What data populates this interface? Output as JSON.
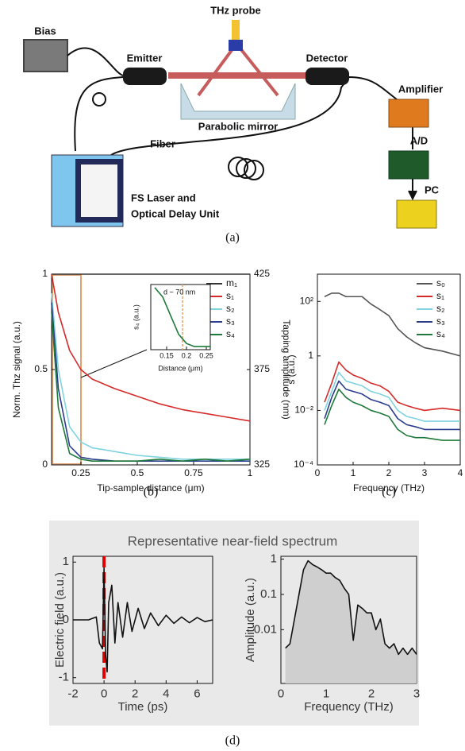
{
  "panel_a": {
    "bias": "Bias",
    "emitter": "Emitter",
    "thz_probe": "THz probe",
    "parabolic_mirror": "Parabolic mirror",
    "detector": "Detector",
    "amplifier": "Amplifier",
    "ad": "A/D",
    "pc": "PC",
    "fiber": "Fiber",
    "laser_line1": "FS Laser and",
    "laser_line2": "Optical Delay Unit",
    "caption": "(a)"
  },
  "panel_d": {
    "title": "Representative near-field spectrum",
    "caption": "(d)"
  },
  "chart_data": [
    {
      "type": "line",
      "caption": "(b)",
      "xlabel": "Tip-sample distance (μm)",
      "ylabel": "Norm. Thz signal (a.u.)",
      "y2label": "Tapping amplitude (nm)",
      "x": [
        0.12,
        0.15,
        0.2,
        0.25,
        0.3,
        0.4,
        0.5,
        0.6,
        0.7,
        0.8,
        0.9,
        1.0
      ],
      "xlim": [
        0.12,
        1
      ],
      "xticks": [
        0.25,
        0.5,
        0.75,
        1
      ],
      "ylim": [
        0,
        1
      ],
      "yticks": [
        0,
        0.5,
        1
      ],
      "y2lim": [
        325,
        425
      ],
      "y2ticks": [
        325,
        375,
        425
      ],
      "legend": "upper right",
      "series": [
        {
          "name": "m₁",
          "color": "#333333",
          "axis": "y2",
          "values": [
            425,
            425,
            425,
            425,
            425,
            425,
            425,
            425,
            425,
            425,
            425,
            425
          ]
        },
        {
          "name": "s₁",
          "color": "#d62a2a",
          "values": [
            1.0,
            0.8,
            0.6,
            0.5,
            0.45,
            0.4,
            0.36,
            0.32,
            0.29,
            0.27,
            0.25,
            0.23
          ]
        },
        {
          "name": "s₂",
          "color": "#7fd3e0",
          "values": [
            0.9,
            0.5,
            0.2,
            0.12,
            0.09,
            0.07,
            0.05,
            0.04,
            0.03,
            0.03,
            0.03,
            0.03
          ]
        },
        {
          "name": "s₃",
          "color": "#2a3c8c",
          "values": [
            0.85,
            0.4,
            0.1,
            0.04,
            0.03,
            0.02,
            0.02,
            0.02,
            0.02,
            0.02,
            0.02,
            0.02
          ]
        },
        {
          "name": "s₄",
          "color": "#1e7a3a",
          "values": [
            0.8,
            0.3,
            0.06,
            0.03,
            0.02,
            0.02,
            0.02,
            0.03,
            0.02,
            0.03,
            0.02,
            0.03
          ]
        }
      ]
    },
    {
      "type": "line",
      "xlabel": "Distance (μm)",
      "ylabel": "s₄ (a.u.)",
      "annotation": "d ~ 70 nm",
      "marker_x": 0.19,
      "marker_color": "#e8a060",
      "x": [
        0.12,
        0.14,
        0.16,
        0.18,
        0.2,
        0.22,
        0.24,
        0.26
      ],
      "xlim": [
        0.11,
        0.26
      ],
      "xticks": [
        0.15,
        0.2,
        0.25
      ],
      "ylim": [
        0,
        1.05
      ],
      "series": [
        {
          "color": "#1e7a3a",
          "values": [
            1.0,
            0.85,
            0.55,
            0.25,
            0.1,
            0.05,
            0.05,
            0.05
          ]
        }
      ]
    },
    {
      "type": "line",
      "caption": "(c)",
      "xlabel": "Frequency (THz)",
      "ylabel": "s (a.u.)",
      "log_y": true,
      "legend": "upper right",
      "x": [
        0.2,
        0.4,
        0.6,
        0.8,
        1,
        1.25,
        1.5,
        1.75,
        2,
        2.25,
        2.5,
        2.75,
        3,
        3.5,
        4
      ],
      "xlim": [
        0,
        4
      ],
      "xticks": [
        0,
        1,
        2,
        3,
        4
      ],
      "ylim": [
        0.0001,
        1000
      ],
      "yticks": [
        {
          "value": 0.0001,
          "label": "10⁻⁴"
        },
        {
          "value": 0.01,
          "label": "10⁻²"
        },
        1,
        {
          "value": 100,
          "label": "10²"
        }
      ],
      "series": [
        {
          "name": "s₀",
          "color": "#555555",
          "values": [
            150,
            200,
            200,
            150,
            150,
            150,
            80,
            50,
            30,
            10,
            5,
            3,
            2,
            1.5,
            1
          ]
        },
        {
          "name": "s₁",
          "color": "#d62a2a",
          "values": [
            0.02,
            0.1,
            0.6,
            0.3,
            0.2,
            0.15,
            0.1,
            0.08,
            0.05,
            0.02,
            0.015,
            0.012,
            0.01,
            0.012,
            0.01
          ]
        },
        {
          "name": "s₂",
          "color": "#7fd3e0",
          "values": [
            0.01,
            0.05,
            0.25,
            0.12,
            0.1,
            0.08,
            0.05,
            0.04,
            0.03,
            0.01,
            0.006,
            0.005,
            0.004,
            0.004,
            0.004
          ]
        },
        {
          "name": "s₃",
          "color": "#2a3c8c",
          "values": [
            0.005,
            0.03,
            0.12,
            0.06,
            0.05,
            0.04,
            0.025,
            0.02,
            0.015,
            0.005,
            0.003,
            0.0025,
            0.002,
            0.002,
            0.002
          ]
        },
        {
          "name": "s₄",
          "color": "#1e7a3a",
          "values": [
            0.003,
            0.015,
            0.06,
            0.03,
            0.02,
            0.015,
            0.01,
            0.008,
            0.006,
            0.002,
            0.0012,
            0.001,
            0.001,
            0.0008,
            0.0008
          ]
        }
      ]
    },
    {
      "type": "line",
      "xlabel": "Time (ps)",
      "ylabel": "Electric field (a.u.)",
      "marker_x": 0,
      "marker_color": "#e00000",
      "x": [
        -2,
        -1,
        -0.5,
        -0.3,
        -0.1,
        0,
        0.1,
        0.2,
        0.3,
        0.5,
        0.7,
        0.9,
        1.2,
        1.5,
        1.8,
        2.2,
        2.6,
        3,
        3.5,
        4,
        4.5,
        5,
        5.5,
        6,
        6.5,
        7
      ],
      "xlim": [
        -2,
        7
      ],
      "xticks": [
        -2,
        0,
        2,
        4,
        6
      ],
      "ylim": [
        -1.1,
        1.1
      ],
      "yticks": [
        -1,
        0,
        1
      ],
      "series": [
        {
          "color": "#111111",
          "values": [
            0,
            0,
            0.05,
            -0.4,
            -0.5,
            0.9,
            -0.6,
            -0.9,
            0.3,
            0.6,
            -0.4,
            0.3,
            -0.3,
            0.3,
            -0.2,
            0.2,
            -0.15,
            0.12,
            -0.1,
            0.08,
            -0.06,
            0.05,
            -0.05,
            0.04,
            -0.03,
            0
          ]
        }
      ]
    },
    {
      "type": "area",
      "xlabel": "Frequency (THz)",
      "ylabel": "Amplitude (a.u.)",
      "log_y": true,
      "x": [
        0.1,
        0.2,
        0.3,
        0.4,
        0.5,
        0.6,
        0.7,
        0.8,
        0.9,
        1,
        1.1,
        1.2,
        1.3,
        1.4,
        1.5,
        1.6,
        1.7,
        1.8,
        1.9,
        2,
        2.1,
        2.2,
        2.3,
        2.4,
        2.5,
        2.6,
        2.7,
        2.8,
        2.9,
        3
      ],
      "xlim": [
        0,
        3
      ],
      "xticks": [
        0,
        1,
        2,
        3
      ],
      "ylim": [
        0.0003,
        1.2
      ],
      "yticks": [
        0.01,
        0.1,
        1
      ],
      "series": [
        {
          "color": "#111111",
          "fill": "#cfcfcf",
          "values": [
            0.003,
            0.004,
            0.02,
            0.1,
            0.5,
            0.9,
            0.7,
            0.6,
            0.5,
            0.4,
            0.4,
            0.3,
            0.25,
            0.15,
            0.1,
            0.005,
            0.05,
            0.04,
            0.03,
            0.03,
            0.01,
            0.02,
            0.004,
            0.003,
            0.004,
            0.002,
            0.003,
            0.002,
            0.003,
            0.002
          ]
        }
      ]
    }
  ]
}
